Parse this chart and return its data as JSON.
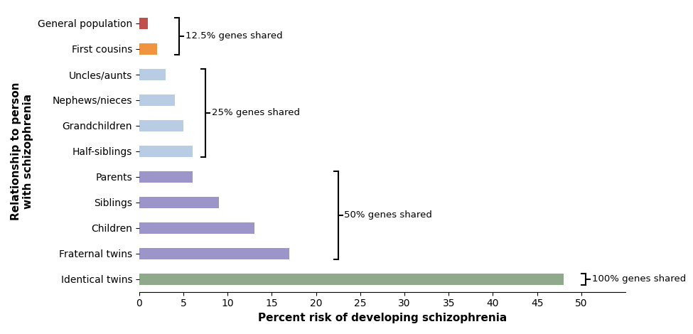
{
  "categories": [
    "General population",
    "First cousins",
    "Uncles/aunts",
    "Nephews/nieces",
    "Grandchildren",
    "Half-siblings",
    "Parents",
    "Siblings",
    "Children",
    "Fraternal twins",
    "Identical twins"
  ],
  "values": [
    1,
    2,
    3,
    4,
    5,
    6,
    6,
    9,
    13,
    17,
    48
  ],
  "bar_colors": [
    "#c0504d",
    "#f0953f",
    "#b8cce4",
    "#b8cce4",
    "#b8cce4",
    "#b8cce4",
    "#9b95c9",
    "#9b95c9",
    "#9b95c9",
    "#9b95c9",
    "#8faa8b"
  ],
  "xlabel": "Percent risk of developing schizophrenia",
  "ylabel": "Relationship to person\nwith schizophrenia",
  "xlim": [
    0,
    55
  ],
  "xticks": [
    0,
    5,
    10,
    15,
    20,
    25,
    30,
    35,
    40,
    45,
    50
  ],
  "background_color": "#ffffff",
  "xlabel_fontsize": 11,
  "ylabel_fontsize": 11,
  "tick_fontsize": 10,
  "bar_height": 0.45
}
